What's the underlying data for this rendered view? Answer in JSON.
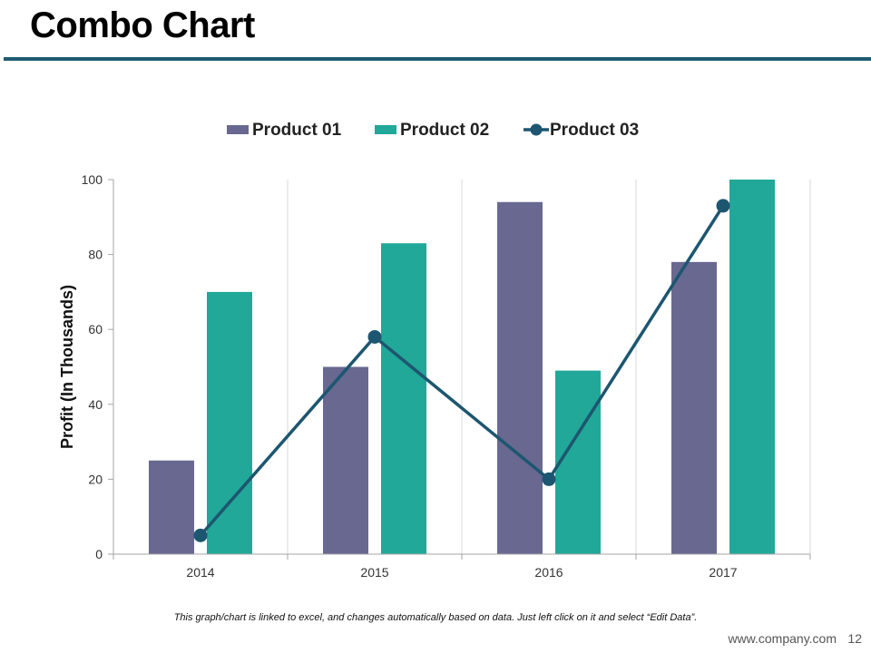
{
  "slide": {
    "title": "Combo Chart",
    "footnote": "This graph/chart is linked to excel, and changes automatically based on data. Just left click on it and select “Edit Data”.",
    "url": "www.company.com",
    "page_number": "12"
  },
  "colors": {
    "product1": "#686891",
    "product2": "#21a898",
    "product3": "#1d5670",
    "rule": "#1f5a70",
    "grid": "#d9d9d9",
    "axis": "#a6a6a6"
  },
  "chart_data": {
    "type": "bar",
    "title": "",
    "xlabel": "",
    "ylabel": "Profit  (In Thousands)",
    "categories": [
      "2014",
      "2015",
      "2016",
      "2017"
    ],
    "ylim": [
      0,
      100
    ],
    "yticks": [
      0,
      20,
      40,
      60,
      80,
      100
    ],
    "legend_position": "top",
    "series": [
      {
        "name": "Product 01",
        "kind": "bar",
        "values": [
          25,
          50,
          94,
          78
        ]
      },
      {
        "name": "Product 02",
        "kind": "bar",
        "values": [
          70,
          83,
          49,
          100
        ]
      },
      {
        "name": "Product 03",
        "kind": "line",
        "values": [
          5,
          58,
          20,
          93
        ]
      }
    ]
  }
}
